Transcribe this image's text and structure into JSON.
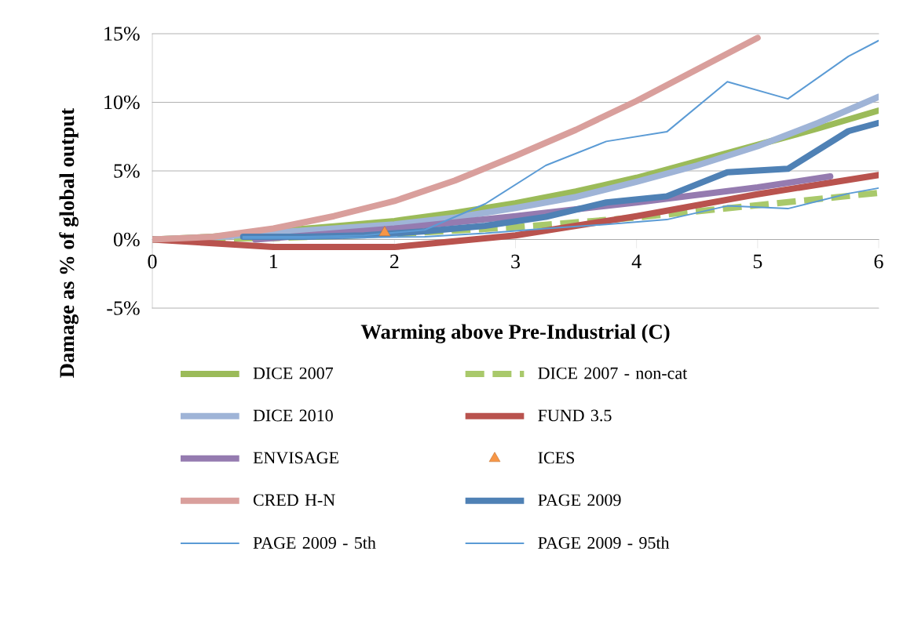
{
  "chart_data": {
    "type": "line",
    "xlabel": "Warming above Pre-Industrial (C)",
    "ylabel": "Damage as % of global output",
    "xlim": [
      0,
      6
    ],
    "xticks": [
      0,
      1,
      2,
      3,
      4,
      5,
      6
    ],
    "ylim": [
      -5,
      15
    ],
    "yticks": [
      {
        "value": -5,
        "label": "-5%"
      },
      {
        "value": 0,
        "label": "0%"
      },
      {
        "value": 5,
        "label": "5%"
      },
      {
        "value": 10,
        "label": "10%"
      },
      {
        "value": 15,
        "label": "15%"
      }
    ],
    "grid": "y",
    "legend": "bottom",
    "marker": "none",
    "line_style": "solid",
    "series": [
      {
        "name": "DICE 2007",
        "color": "#9bbb59",
        "x": [
          0,
          0.5,
          1,
          1.5,
          2,
          2.5,
          3,
          3.5,
          4,
          4.5,
          5,
          5.5,
          6
        ],
        "values": [
          0,
          0.2,
          0.6,
          0.95,
          1.35,
          1.95,
          2.65,
          3.5,
          4.5,
          5.7,
          6.9,
          8.1,
          9.4
        ]
      },
      {
        "name": "DICE 2007 - non-cat",
        "color": "#a9c96b",
        "line_style": "dashed",
        "x": [
          0,
          1,
          2,
          3,
          4,
          5,
          6
        ],
        "values": [
          0,
          0.1,
          0.4,
          0.9,
          1.6,
          2.5,
          3.4
        ]
      },
      {
        "name": "DICE 2010",
        "color": "#9fb4d7",
        "x": [
          0,
          0.5,
          1,
          1.5,
          2,
          2.5,
          3,
          3.5,
          4,
          4.5,
          5,
          5.5,
          6
        ],
        "values": [
          0,
          0.15,
          0.5,
          0.8,
          1.1,
          1.6,
          2.3,
          3.1,
          4.2,
          5.4,
          6.8,
          8.5,
          10.4
        ]
      },
      {
        "name": "FUND 3.5",
        "color": "#b9534e",
        "x": [
          0,
          1,
          2,
          3,
          4,
          5,
          6
        ],
        "values": [
          0,
          -0.55,
          -0.55,
          0.3,
          1.7,
          3.3,
          4.7
        ]
      },
      {
        "name": "ENVISAGE",
        "color": "#957bb0",
        "x": [
          0.85,
          2,
          3,
          4,
          5,
          5.6
        ],
        "values": [
          0,
          0.8,
          1.7,
          2.7,
          3.8,
          4.6
        ]
      },
      {
        "name": "ICES",
        "type": "scatter",
        "marker": "triangle",
        "color": "#f79646",
        "x": [
          1.92
        ],
        "values": [
          0.5
        ]
      },
      {
        "name": "CRED H-N",
        "color": "#d99f9c",
        "x": [
          0,
          0.5,
          1,
          1.5,
          2,
          2.5,
          3,
          3.5,
          4,
          4.5,
          5
        ],
        "values": [
          0,
          0.2,
          0.8,
          1.7,
          2.8,
          4.3,
          6.1,
          8.0,
          10.1,
          12.4,
          14.7
        ]
      },
      {
        "name": "PAGE 2009",
        "color": "#4f81b5",
        "x": [
          0.75,
          1.25,
          1.75,
          2.25,
          2.75,
          3.25,
          3.75,
          4.25,
          4.75,
          5.25,
          5.75,
          6
        ],
        "values": [
          0.2,
          0.2,
          0.3,
          0.6,
          1.0,
          1.65,
          2.7,
          3.15,
          4.9,
          5.15,
          7.9,
          8.5
        ]
      },
      {
        "name": "PAGE 2009 - 5th",
        "color": "#5b9bd5",
        "x": [
          0.75,
          1.25,
          1.75,
          2.25,
          2.75,
          3.25,
          3.75,
          4.25,
          4.75,
          5.25,
          5.75,
          6
        ],
        "values": [
          0.1,
          0.1,
          0.15,
          0.2,
          0.45,
          0.8,
          1.1,
          1.45,
          2.45,
          2.25,
          3.35,
          3.75
        ]
      },
      {
        "name": "PAGE 2009 - 95th",
        "color": "#5b9bd5",
        "x": [
          0.75,
          1.25,
          1.75,
          2.25,
          2.75,
          3.25,
          3.75,
          4.25,
          4.75,
          5.25,
          5.75,
          6
        ],
        "values": [
          0.2,
          0.2,
          0.3,
          0.7,
          2.6,
          5.4,
          7.15,
          7.85,
          11.5,
          10.25,
          13.35,
          14.5
        ]
      }
    ]
  }
}
